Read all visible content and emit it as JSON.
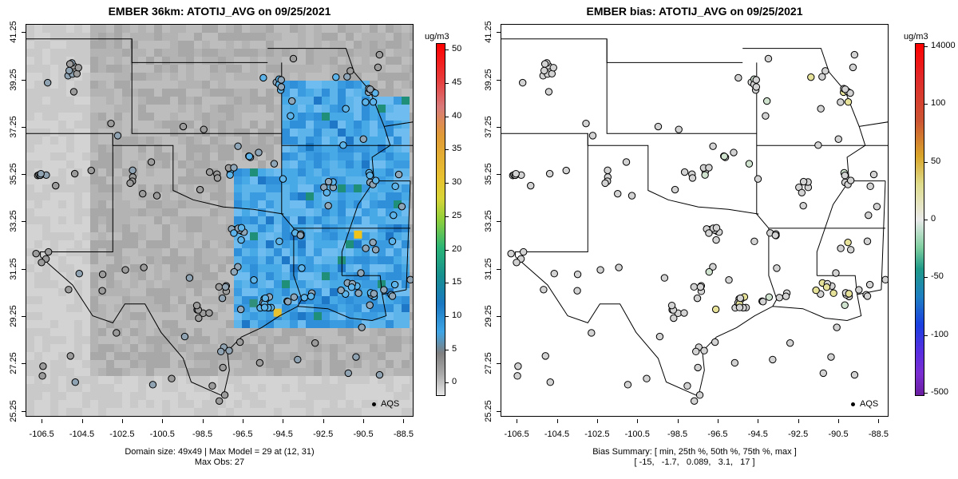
{
  "left_panel": {
    "title": "EMBER 36km: ATOTIJ_AVG on 09/25/2021",
    "caption_line1": "Domain size: 49x49 | Max Model = 29 at (12, 31)",
    "caption_line2": "Max Obs: 27",
    "legend_label": "AQS",
    "colorbar": {
      "unit": "ug/m3",
      "ticks": [
        "50",
        "45",
        "40",
        "35",
        "30",
        "25",
        "20",
        "15",
        "10",
        "5",
        "0"
      ],
      "range": [
        -2,
        51
      ]
    }
  },
  "right_panel": {
    "title": "EMBER bias: ATOTIJ_AVG on 09/25/2021",
    "caption_line1": "Bias Summary: [ min, 25th %, 50th %, 75th %, max ]",
    "caption_line2": "[ -15,   -1.7,   0.089,   3.1,   17 ]",
    "legend_label": "AQS",
    "colorbar": {
      "unit": "ug/m3",
      "ticks": [
        "14000",
        "100",
        "50",
        "0",
        "-50",
        "-100",
        "-500"
      ]
    }
  },
  "axes": {
    "x_ticks": [
      "-106.5",
      "-104.5",
      "-102.5",
      "-100.5",
      "-98.5",
      "-96.5",
      "-94.5",
      "-92.5",
      "-90.5",
      "-88.5"
    ],
    "y_ticks": [
      "41.25",
      "39.25",
      "37.25",
      "35.25",
      "33.25",
      "31.25",
      "29.25",
      "27.25",
      "25.25"
    ],
    "lon_range": [
      -107.3,
      -88.0
    ],
    "lat_range": [
      25.0,
      41.6
    ]
  },
  "colors": {
    "background_gray": "#bdbdbd",
    "model_blue": "#47a9e6",
    "station_fill_gray": "#c8c8c8"
  }
}
